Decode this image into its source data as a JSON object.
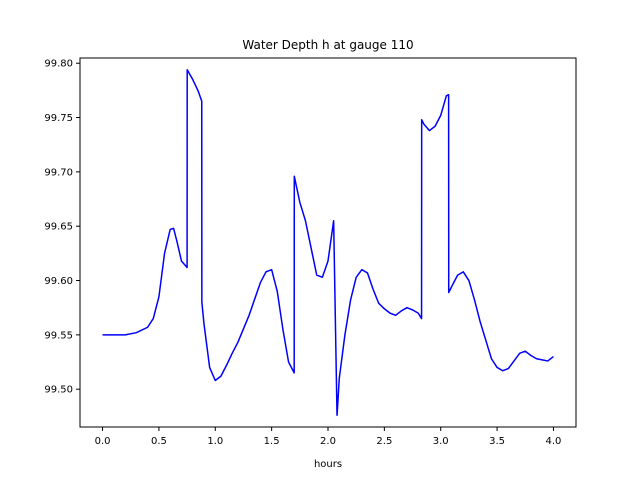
{
  "chart_data": {
    "type": "line",
    "title": "Water Depth h at gauge 110",
    "xlabel": "hours",
    "ylabel": "",
    "xlim": [
      -0.2,
      4.2
    ],
    "ylim": [
      99.4652,
      99.8048
    ],
    "xticks": [
      0.0,
      0.5,
      1.0,
      1.5,
      2.0,
      2.5,
      3.0,
      3.5,
      4.0
    ],
    "xtick_labels": [
      "0.0",
      "0.5",
      "1.0",
      "1.5",
      "2.0",
      "2.5",
      "3.0",
      "3.5",
      "4.0"
    ],
    "yticks": [
      99.5,
      99.55,
      99.6,
      99.65,
      99.7,
      99.75,
      99.8
    ],
    "ytick_labels": [
      "99.50",
      "99.55",
      "99.60",
      "99.65",
      "99.70",
      "99.75",
      "99.80"
    ],
    "grid": false,
    "legend": "none",
    "series": [
      {
        "color": "#0000ff",
        "x": [
          0.0,
          0.1,
          0.2,
          0.3,
          0.4,
          0.45,
          0.5,
          0.55,
          0.6,
          0.63,
          0.66,
          0.7,
          0.75,
          0.751,
          0.8,
          0.85,
          0.88,
          0.881,
          0.9,
          0.95,
          1.0,
          1.05,
          1.1,
          1.15,
          1.2,
          1.3,
          1.4,
          1.45,
          1.5,
          1.55,
          1.6,
          1.65,
          1.7,
          1.701,
          1.75,
          1.8,
          1.85,
          1.9,
          1.95,
          2.0,
          2.05,
          2.08,
          2.081,
          2.1,
          2.15,
          2.2,
          2.25,
          2.3,
          2.35,
          2.4,
          2.45,
          2.5,
          2.55,
          2.6,
          2.65,
          2.7,
          2.75,
          2.8,
          2.83,
          2.831,
          2.85,
          2.9,
          2.95,
          3.0,
          3.05,
          3.07,
          3.071,
          3.1,
          3.15,
          3.2,
          3.25,
          3.3,
          3.35,
          3.4,
          3.45,
          3.5,
          3.55,
          3.6,
          3.65,
          3.7,
          3.75,
          3.8,
          3.85,
          3.9,
          3.95,
          4.0
        ],
        "y": [
          99.55,
          99.55,
          99.55,
          99.552,
          99.557,
          99.565,
          99.585,
          99.625,
          99.647,
          99.648,
          99.636,
          99.618,
          99.612,
          99.794,
          99.785,
          99.774,
          99.765,
          99.58,
          99.56,
          99.52,
          99.508,
          99.512,
          99.522,
          99.533,
          99.543,
          99.568,
          99.598,
          99.608,
          99.61,
          99.59,
          99.555,
          99.525,
          99.515,
          99.696,
          99.672,
          99.655,
          99.63,
          99.605,
          99.603,
          99.618,
          99.655,
          99.476,
          99.477,
          99.51,
          99.55,
          99.582,
          99.603,
          99.61,
          99.607,
          99.592,
          99.579,
          99.574,
          99.57,
          99.568,
          99.572,
          99.575,
          99.573,
          99.57,
          99.565,
          99.748,
          99.744,
          99.738,
          99.742,
          99.752,
          99.77,
          99.771,
          99.589,
          99.595,
          99.605,
          99.608,
          99.6,
          99.582,
          99.562,
          99.545,
          99.528,
          99.52,
          99.517,
          99.519,
          99.526,
          99.533,
          99.535,
          99.531,
          99.528,
          99.527,
          99.526,
          99.53
        ]
      }
    ]
  }
}
